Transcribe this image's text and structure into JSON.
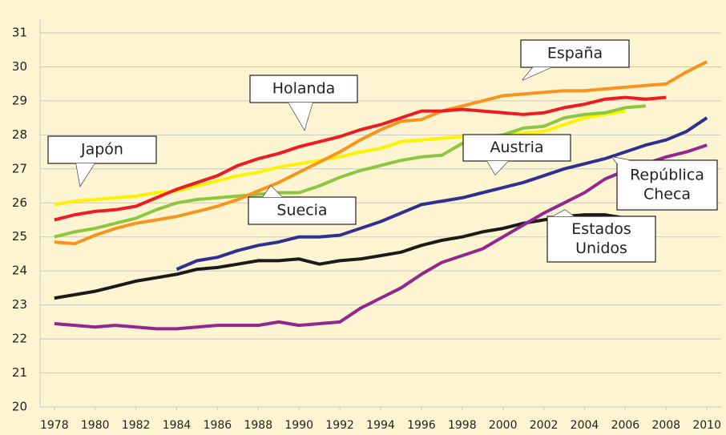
{
  "chart_data": {
    "type": "line",
    "x": [
      1978,
      1979,
      1980,
      1981,
      1982,
      1983,
      1984,
      1985,
      1986,
      1987,
      1988,
      1989,
      1990,
      1991,
      1992,
      1993,
      1994,
      1995,
      1996,
      1997,
      1998,
      1999,
      2000,
      2001,
      2002,
      2003,
      2004,
      2005,
      2006,
      2007,
      2008,
      2009,
      2010
    ],
    "xlim": [
      1977.3,
      2010.7
    ],
    "xticks": [
      1978,
      1980,
      1982,
      1984,
      1986,
      1988,
      1990,
      1992,
      1994,
      1996,
      1998,
      2000,
      2002,
      2004,
      2006,
      2008,
      2010
    ],
    "ylim": [
      20,
      31.4
    ],
    "yticks": [
      20,
      21,
      22,
      23,
      24,
      25,
      26,
      27,
      28,
      29,
      30,
      31
    ],
    "grid": true,
    "series": [
      {
        "name": "Japón",
        "label_lines": [
          "Japón"
        ],
        "color": "#fff200",
        "values": [
          25.95,
          26.05,
          26.1,
          26.15,
          26.2,
          26.3,
          26.35,
          26.5,
          26.65,
          26.8,
          26.9,
          27.05,
          27.15,
          27.25,
          27.35,
          27.5,
          27.6,
          27.8,
          27.85,
          27.9,
          27.95,
          27.95,
          28.0,
          28.05,
          28.1,
          28.3,
          28.5,
          28.6,
          28.7,
          null,
          null,
          null,
          null
        ]
      },
      {
        "name": "Suecia",
        "label_lines": [
          "Suecia"
        ],
        "color": "#8dc63f",
        "values": [
          25.0,
          25.15,
          25.25,
          25.4,
          25.55,
          25.8,
          26.0,
          26.1,
          26.15,
          26.2,
          26.25,
          26.3,
          26.3,
          26.5,
          26.75,
          26.95,
          27.1,
          27.25,
          27.35,
          27.4,
          27.75,
          27.9,
          28.0,
          28.2,
          28.25,
          28.5,
          28.6,
          28.65,
          28.8,
          28.85,
          null,
          null,
          null
        ]
      },
      {
        "name": "España",
        "label_lines": [
          "España"
        ],
        "color": "#f7941d",
        "values": [
          24.85,
          24.8,
          25.05,
          25.25,
          25.4,
          25.5,
          25.6,
          25.75,
          25.9,
          26.1,
          26.35,
          26.6,
          26.9,
          27.2,
          27.5,
          27.85,
          28.15,
          28.4,
          28.45,
          28.7,
          28.85,
          29.0,
          29.15,
          29.2,
          29.25,
          29.3,
          29.3,
          29.35,
          29.4,
          29.45,
          29.5,
          29.85,
          30.15
        ]
      },
      {
        "name": "Holanda",
        "label_lines": [
          "Holanda"
        ],
        "color": "#ed1c24",
        "values": [
          25.5,
          25.65,
          25.75,
          25.8,
          25.9,
          26.15,
          26.4,
          26.6,
          26.8,
          27.1,
          27.3,
          27.45,
          27.65,
          27.8,
          27.95,
          28.15,
          28.3,
          28.5,
          28.7,
          28.7,
          28.75,
          28.7,
          28.65,
          28.6,
          28.65,
          28.8,
          28.9,
          29.05,
          29.1,
          29.05,
          29.1,
          null,
          null
        ]
      },
      {
        "name": "Austria",
        "label_lines": [
          "Austria"
        ],
        "color": "#2e3192",
        "values": [
          null,
          null,
          null,
          null,
          null,
          null,
          24.05,
          24.3,
          24.4,
          24.6,
          24.75,
          24.85,
          25.0,
          25.0,
          25.05,
          25.25,
          25.45,
          25.7,
          25.95,
          26.05,
          26.15,
          26.3,
          26.45,
          26.6,
          26.8,
          27.0,
          27.15,
          27.3,
          27.5,
          27.7,
          27.85,
          28.1,
          28.5
        ]
      },
      {
        "name": "Estados Unidos",
        "label_lines": [
          "Estados",
          "Unidos"
        ],
        "color": "#1a1a1a",
        "values": [
          23.2,
          23.3,
          23.4,
          23.55,
          23.7,
          23.8,
          23.9,
          24.05,
          24.1,
          24.2,
          24.3,
          24.3,
          24.35,
          24.2,
          24.3,
          24.35,
          24.45,
          24.55,
          24.75,
          24.9,
          25.0,
          25.15,
          25.25,
          25.4,
          25.5,
          25.6,
          25.65,
          25.65,
          25.55,
          null,
          null,
          null,
          null
        ]
      },
      {
        "name": "República Checa",
        "label_lines": [
          "República",
          "Checa"
        ],
        "color": "#92278f",
        "values": [
          22.45,
          22.4,
          22.35,
          22.4,
          22.35,
          22.3,
          22.3,
          22.35,
          22.4,
          22.4,
          22.4,
          22.5,
          22.4,
          22.45,
          22.5,
          22.9,
          23.2,
          23.5,
          23.9,
          24.25,
          24.45,
          24.65,
          25.0,
          25.35,
          25.7,
          26.0,
          26.3,
          26.7,
          26.95,
          27.15,
          27.35,
          27.5,
          27.7
        ]
      }
    ]
  }
}
